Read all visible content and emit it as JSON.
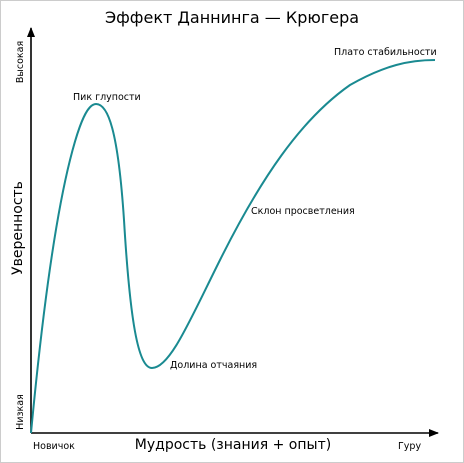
{
  "title": "Эффект Даннинга — Крюгера",
  "y_axis": {
    "label": "Уверенность",
    "high": "Высокая",
    "low": "Низкая"
  },
  "x_axis": {
    "label": "Мудрость (знания + опыт)",
    "start": "Новичок",
    "end": "Гуру"
  },
  "annotations": [
    "Пик глупости",
    "Долина отчаяния",
    "Склон просветления",
    "Плато стабильности"
  ]
}
